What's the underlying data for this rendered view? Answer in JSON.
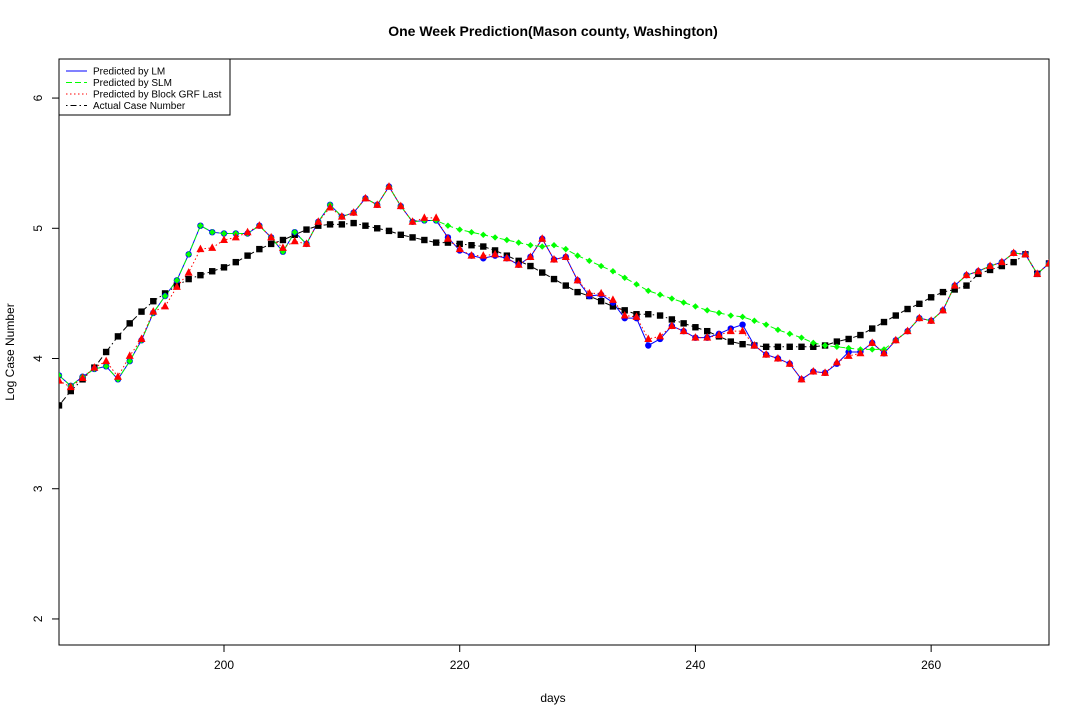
{
  "chart_data": {
    "type": "line",
    "title": "One Week Prediction(Mason county, Washington)",
    "xlabel": "days",
    "ylabel": "Log Case Number",
    "xlim": [
      186,
      270
    ],
    "ylim": [
      1.8,
      6.3
    ],
    "x_ticks": [
      200,
      220,
      240,
      260
    ],
    "y_ticks": [
      2,
      3,
      4,
      5,
      6
    ],
    "grid": false,
    "legend_position": "top-left",
    "colors": {
      "lm": "#0000ff",
      "slm": "#00ff00",
      "grf": "#ff0000",
      "actual": "#000000"
    },
    "series": [
      {
        "name": "Predicted by LM",
        "key": "lm",
        "marker": "circle",
        "line": "solid",
        "x": [
          186,
          187,
          188,
          189,
          190,
          191,
          192,
          193,
          194,
          195,
          196,
          197,
          198,
          199,
          200,
          201,
          202,
          203,
          204,
          205,
          206,
          207,
          208,
          209,
          210,
          211,
          212,
          213,
          214,
          215,
          216,
          217,
          218,
          219,
          220,
          221,
          222,
          223,
          224,
          225,
          226,
          227,
          228,
          229,
          230,
          231,
          232,
          233,
          234,
          235,
          236,
          237,
          238,
          239,
          240,
          241,
          242,
          243,
          244,
          245,
          246,
          247,
          248,
          249,
          250,
          251,
          252,
          253,
          254,
          255,
          256,
          257,
          258,
          259,
          260,
          261,
          262,
          263,
          264,
          265,
          266,
          267,
          268,
          269,
          270
        ],
        "values": [
          3.87,
          3.79,
          3.86,
          3.92,
          3.94,
          3.84,
          3.98,
          4.14,
          4.35,
          4.48,
          4.6,
          4.8,
          5.02,
          4.97,
          4.96,
          4.96,
          4.96,
          5.02,
          4.93,
          4.82,
          4.97,
          4.88,
          5.05,
          5.18,
          5.09,
          5.12,
          5.23,
          5.18,
          5.32,
          5.17,
          5.05,
          5.06,
          5.06,
          4.93,
          4.83,
          4.79,
          4.77,
          4.79,
          4.77,
          4.72,
          4.78,
          4.92,
          4.76,
          4.78,
          4.6,
          4.48,
          4.49,
          4.43,
          4.31,
          4.31,
          4.1,
          4.15,
          4.25,
          4.21,
          4.16,
          4.16,
          4.19,
          4.23,
          4.26,
          4.1,
          4.03,
          4.0,
          3.96,
          3.84,
          3.9,
          3.89,
          3.96,
          4.05,
          4.05,
          4.12,
          4.04,
          4.14,
          4.21,
          4.31,
          4.29,
          4.37,
          4.56,
          4.64,
          4.67,
          4.71,
          4.74,
          4.81,
          4.8,
          4.65,
          4.73
        ]
      },
      {
        "name": "Predicted by SLM",
        "key": "slm",
        "marker": "diamond",
        "line": "dashed",
        "x": [
          186,
          187,
          188,
          189,
          190,
          191,
          192,
          193,
          194,
          195,
          196,
          197,
          198,
          199,
          200,
          201,
          202,
          203,
          204,
          205,
          206,
          207,
          208,
          209,
          210,
          211,
          212,
          213,
          214,
          215,
          216,
          217,
          218,
          219,
          220,
          221,
          222,
          223,
          224,
          225,
          226,
          227,
          228,
          229,
          230,
          231,
          232,
          233,
          234,
          235,
          236,
          237,
          238,
          239,
          240,
          241,
          242,
          243,
          244,
          245,
          246,
          247,
          248,
          249,
          250,
          251,
          252,
          253,
          254,
          255,
          256,
          257,
          258,
          259,
          260,
          261,
          262,
          263,
          264,
          265,
          266,
          267,
          268,
          269,
          270
        ],
        "values": [
          3.87,
          3.79,
          3.86,
          3.92,
          3.94,
          3.84,
          3.98,
          4.14,
          4.35,
          4.48,
          4.6,
          4.8,
          5.02,
          4.97,
          4.96,
          4.96,
          4.96,
          5.02,
          4.93,
          4.82,
          4.97,
          4.88,
          5.05,
          5.18,
          5.09,
          5.12,
          5.23,
          5.18,
          5.32,
          5.17,
          5.05,
          5.06,
          5.06,
          5.02,
          4.99,
          4.97,
          4.95,
          4.93,
          4.91,
          4.89,
          4.87,
          4.86,
          4.87,
          4.84,
          4.79,
          4.75,
          4.71,
          4.67,
          4.62,
          4.57,
          4.52,
          4.49,
          4.46,
          4.43,
          4.4,
          4.37,
          4.35,
          4.33,
          4.32,
          4.29,
          4.26,
          4.22,
          4.19,
          4.16,
          4.12,
          4.1,
          4.09,
          4.08,
          4.07,
          4.07,
          4.07,
          4.14,
          4.21,
          4.31,
          4.29,
          4.37,
          4.56,
          4.64,
          4.67,
          4.71,
          4.74,
          4.81,
          4.8,
          4.65,
          4.73
        ]
      },
      {
        "name": "Predicted by Block GRF Last",
        "key": "grf",
        "marker": "triangle",
        "line": "dotted",
        "x": [
          186,
          187,
          188,
          189,
          190,
          191,
          192,
          193,
          194,
          195,
          196,
          197,
          198,
          199,
          200,
          201,
          202,
          203,
          204,
          205,
          206,
          207,
          208,
          209,
          210,
          211,
          212,
          213,
          214,
          215,
          216,
          217,
          218,
          219,
          220,
          221,
          222,
          223,
          224,
          225,
          226,
          227,
          228,
          229,
          230,
          231,
          232,
          233,
          234,
          235,
          236,
          237,
          238,
          239,
          240,
          241,
          242,
          243,
          244,
          245,
          246,
          247,
          248,
          249,
          250,
          251,
          252,
          253,
          254,
          255,
          256,
          257,
          258,
          259,
          260,
          261,
          262,
          263,
          264,
          265,
          266,
          267,
          268,
          269,
          270
        ],
        "values": [
          3.83,
          3.78,
          3.85,
          3.93,
          3.98,
          3.86,
          4.02,
          4.15,
          4.36,
          4.4,
          4.55,
          4.66,
          4.84,
          4.85,
          4.91,
          4.93,
          4.97,
          5.02,
          4.93,
          4.85,
          4.9,
          4.88,
          5.05,
          5.16,
          5.09,
          5.12,
          5.23,
          5.18,
          5.32,
          5.17,
          5.05,
          5.08,
          5.08,
          4.92,
          4.84,
          4.79,
          4.79,
          4.8,
          4.77,
          4.72,
          4.78,
          4.92,
          4.76,
          4.78,
          4.6,
          4.5,
          4.5,
          4.45,
          4.33,
          4.32,
          4.15,
          4.17,
          4.25,
          4.21,
          4.16,
          4.16,
          4.18,
          4.21,
          4.21,
          4.1,
          4.03,
          4.0,
          3.96,
          3.84,
          3.9,
          3.89,
          3.97,
          4.02,
          4.04,
          4.12,
          4.04,
          4.14,
          4.21,
          4.31,
          4.29,
          4.37,
          4.56,
          4.64,
          4.67,
          4.71,
          4.74,
          4.81,
          4.8,
          4.65,
          4.73
        ]
      },
      {
        "name": "Actual Case Number",
        "key": "actual",
        "marker": "square",
        "line": "dotdash",
        "x": [
          186,
          187,
          188,
          189,
          190,
          191,
          192,
          193,
          194,
          195,
          196,
          197,
          198,
          199,
          200,
          201,
          202,
          203,
          204,
          205,
          206,
          207,
          208,
          209,
          210,
          211,
          212,
          213,
          214,
          215,
          216,
          217,
          218,
          219,
          220,
          221,
          222,
          223,
          224,
          225,
          226,
          227,
          228,
          229,
          230,
          231,
          232,
          233,
          234,
          235,
          236,
          237,
          238,
          239,
          240,
          241,
          242,
          243,
          244,
          245,
          246,
          247,
          248,
          249,
          250,
          251,
          252,
          253,
          254,
          255,
          256,
          257,
          258,
          259,
          260,
          261,
          262,
          263,
          264,
          265,
          266,
          267,
          268,
          269,
          270
        ],
        "values": [
          3.64,
          3.75,
          3.84,
          3.93,
          4.05,
          4.17,
          4.27,
          4.36,
          4.44,
          4.5,
          4.56,
          4.61,
          4.64,
          4.67,
          4.7,
          4.74,
          4.79,
          4.84,
          4.88,
          4.91,
          4.95,
          4.99,
          5.02,
          5.03,
          5.03,
          5.04,
          5.02,
          5.0,
          4.98,
          4.95,
          4.93,
          4.91,
          4.89,
          4.89,
          4.88,
          4.87,
          4.86,
          4.83,
          4.79,
          4.75,
          4.71,
          4.66,
          4.61,
          4.56,
          4.51,
          4.48,
          4.44,
          4.4,
          4.37,
          4.34,
          4.34,
          4.33,
          4.3,
          4.27,
          4.24,
          4.21,
          4.17,
          4.13,
          4.11,
          4.1,
          4.09,
          4.09,
          4.09,
          4.09,
          4.09,
          4.1,
          4.13,
          4.15,
          4.18,
          4.23,
          4.28,
          4.33,
          4.38,
          4.42,
          4.47,
          4.51,
          4.53,
          4.56,
          4.65,
          4.68,
          4.71,
          4.74,
          4.8,
          4.65,
          4.73
        ]
      }
    ]
  }
}
